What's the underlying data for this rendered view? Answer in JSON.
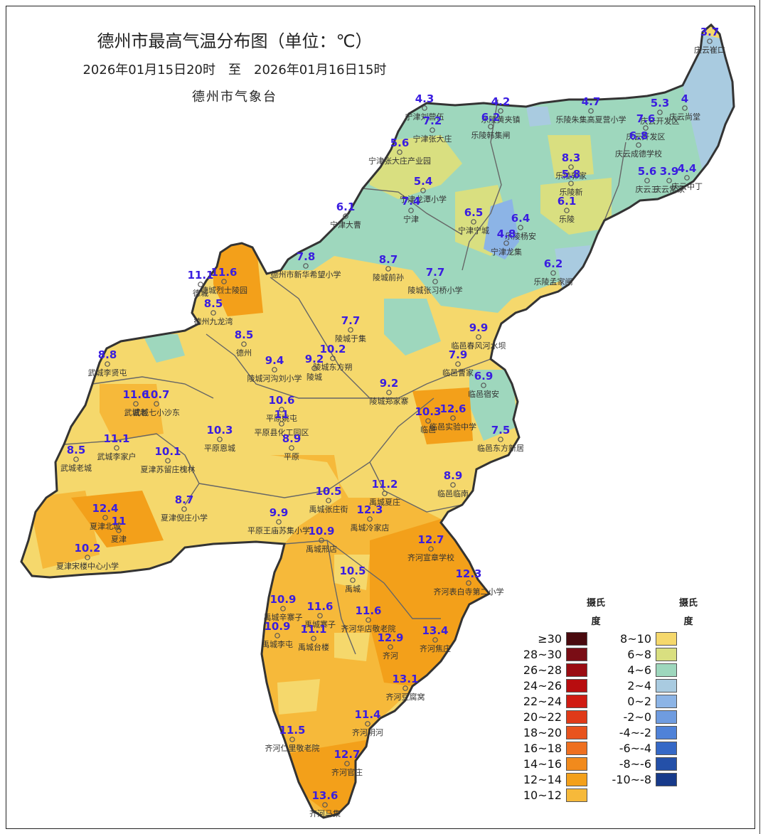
{
  "title": "德州市最高气温分布图（单位：℃）",
  "time_range": "2026年01月15日20时　至　2026年01月16日15时",
  "issuer": "德州市气象台",
  "legend_left": {
    "heading_line1": "摄氏",
    "heading_line2": "度",
    "items": [
      {
        "label": "≥30",
        "color": "#4a0a0e"
      },
      {
        "label": "28~30",
        "color": "#7a0d15"
      },
      {
        "label": "26~28",
        "color": "#9a0c12"
      },
      {
        "label": "24~26",
        "color": "#b80d0f"
      },
      {
        "label": "22~24",
        "color": "#d01b12"
      },
      {
        "label": "20~22",
        "color": "#e03a18"
      },
      {
        "label": "18~20",
        "color": "#e8531d"
      },
      {
        "label": "16~18",
        "color": "#ee6f1f"
      },
      {
        "label": "14~16",
        "color": "#f18a1c"
      },
      {
        "label": "12~14",
        "color": "#f3a01a"
      },
      {
        "label": "10~12",
        "color": "#f6b93a"
      }
    ]
  },
  "legend_right": {
    "heading_line1": "摄氏",
    "heading_line2": "度",
    "items": [
      {
        "label": "8~10",
        "color": "#f5d86c"
      },
      {
        "label": "6~8",
        "color": "#d9df80"
      },
      {
        "label": "4~6",
        "color": "#9ed7bd"
      },
      {
        "label": "2~4",
        "color": "#a9cbe0"
      },
      {
        "label": "0~2",
        "color": "#8cb4e6"
      },
      {
        "label": "-2~0",
        "color": "#6f9ce0"
      },
      {
        "label": "-4~-2",
        "color": "#4f82d8"
      },
      {
        "label": "-6~-4",
        "color": "#3568c6"
      },
      {
        "label": "-8~-6",
        "color": "#2450a8"
      },
      {
        "label": "-10~-8",
        "color": "#173a8a"
      }
    ]
  },
  "stations": [
    {
      "name": "庆云崔口",
      "value": "3.7"
    },
    {
      "name": "宁津刘营伍",
      "value": "4.3"
    },
    {
      "name": "宁津张大庄",
      "value": "7.2"
    },
    {
      "name": "乐陵黄夹镇",
      "value": "4.2"
    },
    {
      "name": "乐陵韩集闸",
      "value": "6.2"
    },
    {
      "name": "乐陵朱集高夏营小学",
      "value": "4.7"
    },
    {
      "name": "庆云开发区",
      "value": "5.3"
    },
    {
      "name": "庆云尚堂",
      "value": "4"
    },
    {
      "name": "庆云开发区2",
      "value": "7.6"
    },
    {
      "name": "庆云成德学校",
      "value": "6.8"
    },
    {
      "name": "宁津张大庄产业园",
      "value": "5.6"
    },
    {
      "name": "乐陵郭家",
      "value": "8.3"
    },
    {
      "name": "乐陵新",
      "value": "5.8"
    },
    {
      "name": "庆云三",
      "value": "5.6"
    },
    {
      "name": "庆云常家",
      "value": "3.9"
    },
    {
      "name": "庆云中丁",
      "value": "4.4"
    },
    {
      "name": "宁津龙潭小学",
      "value": "5.4"
    },
    {
      "name": "宁津",
      "value": "7.4"
    },
    {
      "name": "乐陵",
      "value": "6.1"
    },
    {
      "name": "宁津大曹",
      "value": "6.1"
    },
    {
      "name": "宁津宁城",
      "value": "6.5"
    },
    {
      "name": "乐陵杨安",
      "value": "6.4"
    },
    {
      "name": "宁津龙集",
      "value": "4.8"
    },
    {
      "name": "乐陵孟家闸",
      "value": "6.2"
    },
    {
      "name": "德州市新华希望小学",
      "value": "7.8"
    },
    {
      "name": "陵城前孙",
      "value": "8.7"
    },
    {
      "name": "陵城张习桥小学",
      "value": "7.7"
    },
    {
      "name": "德城",
      "value": "11.1"
    },
    {
      "name": "德城烈士陵园",
      "value": "11.6"
    },
    {
      "name": "德州九龙湾",
      "value": "8.5"
    },
    {
      "name": "陵城于集",
      "value": "7.7"
    },
    {
      "name": "临邑春风河水坝",
      "value": "9.9"
    },
    {
      "name": "德州",
      "value": "8.5"
    },
    {
      "name": "武城李贤屯",
      "value": "8.8"
    },
    {
      "name": "陵城河沟刘小学",
      "value": "9.4"
    },
    {
      "name": "陵城",
      "value": "9.2"
    },
    {
      "name": "陵城东方朔",
      "value": "10.2"
    },
    {
      "name": "临邑曹家",
      "value": "7.9"
    },
    {
      "name": "临邑宿安",
      "value": "6.9"
    },
    {
      "name": "武城老",
      "value": "11.6"
    },
    {
      "name": "武城七小沙东",
      "value": "10.7"
    },
    {
      "name": "陵城郑家寨",
      "value": "9.2"
    },
    {
      "name": "平原姚屯",
      "value": "10.6"
    },
    {
      "name": "平原县化工园区",
      "value": "11"
    },
    {
      "name": "临邑",
      "value": "10.3"
    },
    {
      "name": "临邑实验中学",
      "value": "12.6"
    },
    {
      "name": "平原恩城",
      "value": "10.3"
    },
    {
      "name": "平原",
      "value": "8.9"
    },
    {
      "name": "武城李家户",
      "value": "11.1"
    },
    {
      "name": "武城老城",
      "value": "8.5"
    },
    {
      "name": "夏津苏留庄槐林",
      "value": "10.1"
    },
    {
      "name": "临邑东方新居",
      "value": "7.5"
    },
    {
      "name": "临邑临南",
      "value": "8.9"
    },
    {
      "name": "禹城张庄街",
      "value": "10.5"
    },
    {
      "name": "禹城夏庄",
      "value": "11.2"
    },
    {
      "name": "夏津倪庄小学",
      "value": "8.7"
    },
    {
      "name": "夏津北城",
      "value": "12.4"
    },
    {
      "name": "夏津",
      "value": "11"
    },
    {
      "name": "平原王庙苏集小学",
      "value": "9.9"
    },
    {
      "name": "禹城冷家店",
      "value": "12.3"
    },
    {
      "name": "禹城邢店",
      "value": "10.9"
    },
    {
      "name": "齐河宣章学校",
      "value": "12.7"
    },
    {
      "name": "夏津宋楼中心小学",
      "value": "10.2"
    },
    {
      "name": "禹城",
      "value": "10.5"
    },
    {
      "name": "齐河表白寺第二小学",
      "value": "12.3"
    },
    {
      "name": "禹城辛寨子",
      "value": "10.9"
    },
    {
      "name": "禹城寨子",
      "value": "11.6"
    },
    {
      "name": "齐河华店敬老院",
      "value": "11.6"
    },
    {
      "name": "禹城李屯",
      "value": "10.9"
    },
    {
      "name": "禹城台楼",
      "value": "11.1"
    },
    {
      "name": "齐河",
      "value": "12.9"
    },
    {
      "name": "齐河焦庄",
      "value": "13.4"
    },
    {
      "name": "齐河豆腐窝",
      "value": "13.1"
    },
    {
      "name": "齐河阴河",
      "value": "11.4"
    },
    {
      "name": "齐河仁里敬老院",
      "value": "11.5"
    },
    {
      "name": "齐河官庄",
      "value": "12.7"
    },
    {
      "name": "齐河马集",
      "value": "13.6"
    }
  ]
}
